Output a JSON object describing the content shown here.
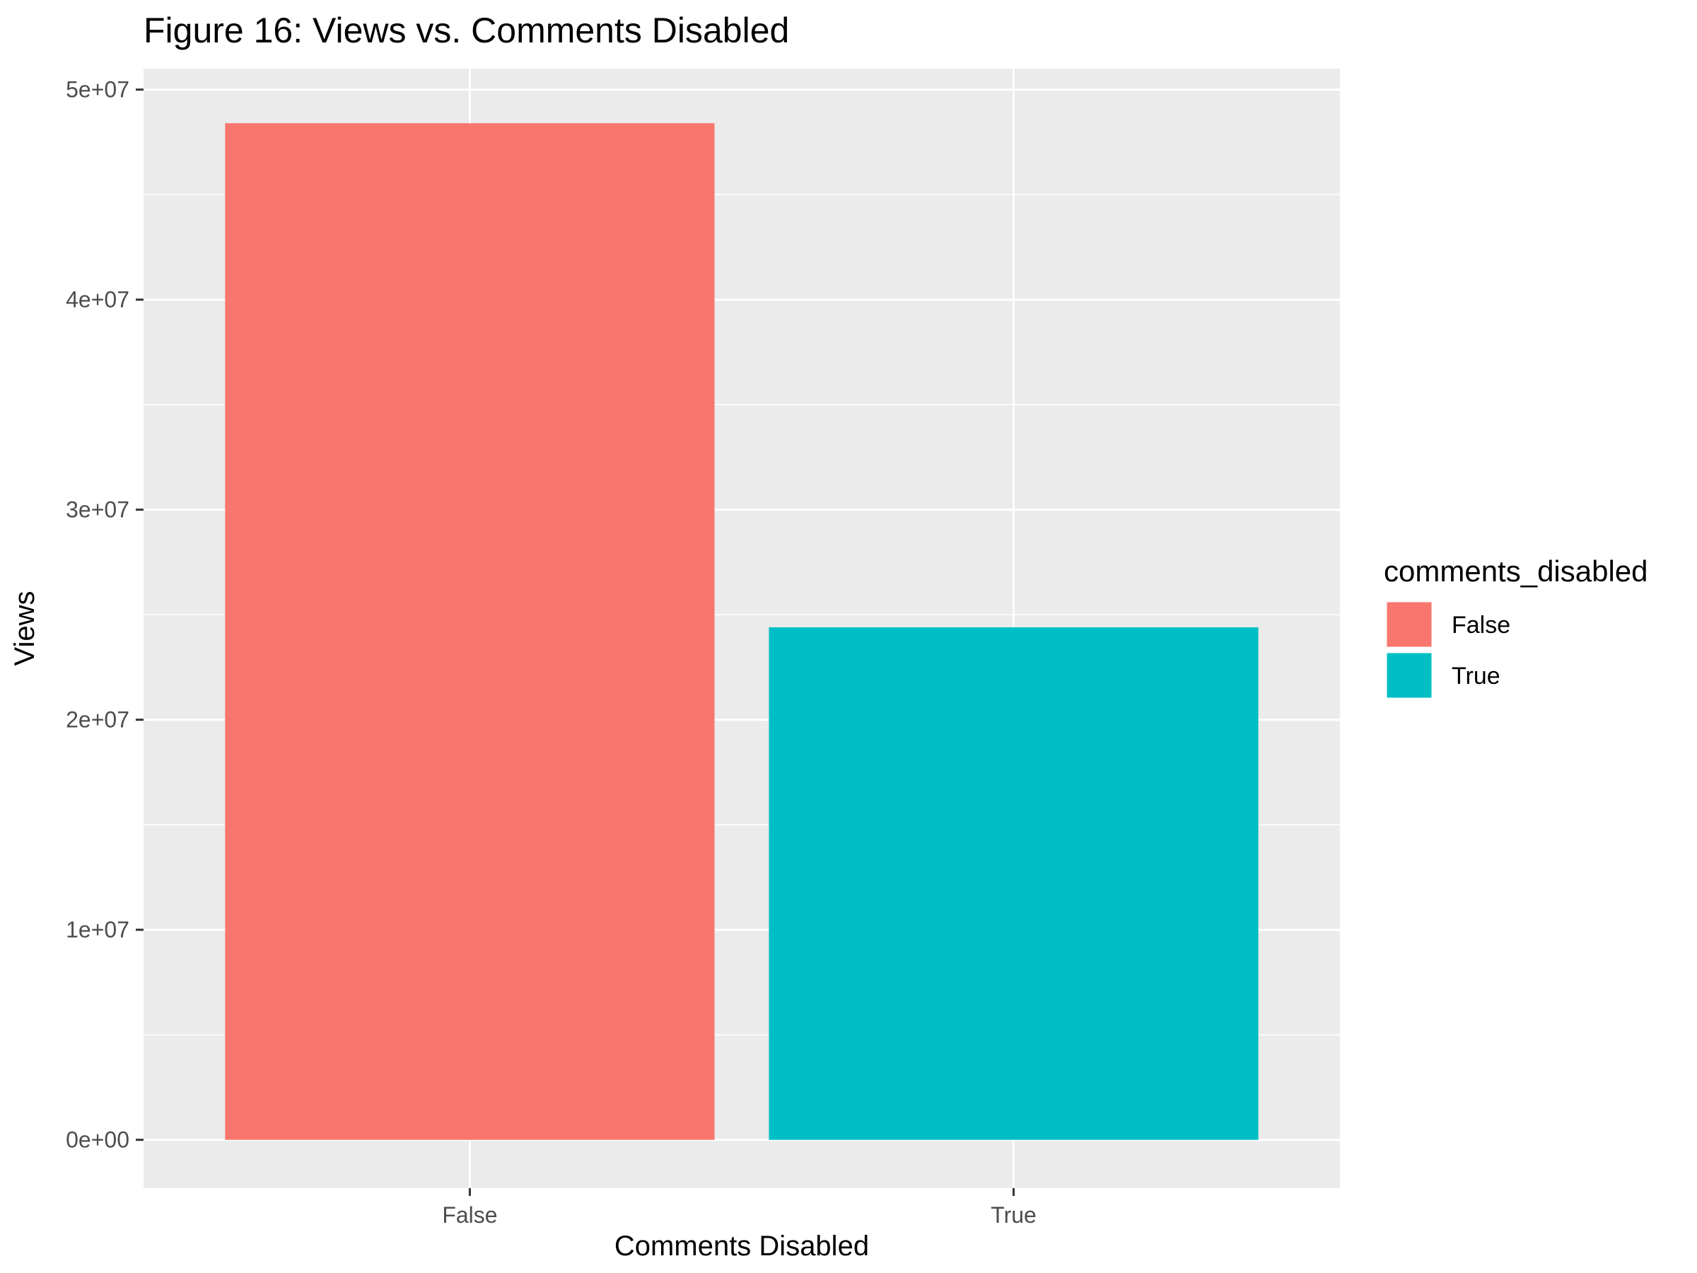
{
  "chart_data": {
    "type": "bar",
    "title": "Figure 16: Views vs. Comments Disabled",
    "xlabel": "Comments Disabled",
    "ylabel": "Views",
    "categories": [
      "False",
      "True"
    ],
    "values": [
      48400000,
      24400000
    ],
    "colors": [
      "#F8766D",
      "#00BFC4"
    ],
    "ylim": [
      -2300000,
      51000000
    ],
    "yticks": [
      0,
      10000000,
      20000000,
      30000000,
      40000000,
      50000000
    ],
    "ytick_labels": [
      "0e+00",
      "1e+07",
      "2e+07",
      "3e+07",
      "4e+07",
      "5e+07"
    ],
    "grid": true,
    "panel_background": "#EBEBEB",
    "legend": {
      "title": "comments_disabled",
      "position": "right",
      "items": [
        {
          "label": "False",
          "color": "#F8766D"
        },
        {
          "label": "True",
          "color": "#00BFC4"
        }
      ]
    }
  }
}
